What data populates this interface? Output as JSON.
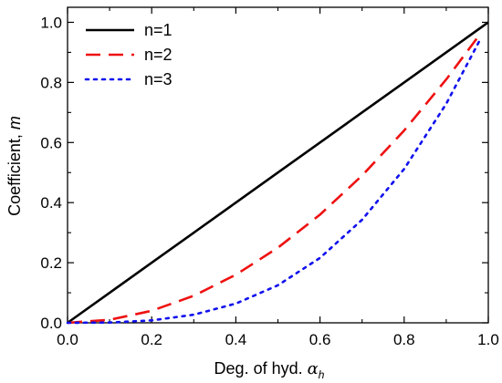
{
  "chart_data": {
    "type": "line",
    "xlabel": "Deg. of hyd. ",
    "xlabel_symbol": "α",
    "xlabel_subscript": "h",
    "ylabel": "Coefficient, ",
    "ylabel_symbol": "m",
    "xlim": [
      0.0,
      1.0
    ],
    "ylim": [
      0.0,
      1.05
    ],
    "xticks": [
      "0.0",
      "0.2",
      "0.4",
      "0.6",
      "0.8",
      "1.0"
    ],
    "yticks": [
      "0.0",
      "0.2",
      "0.4",
      "0.6",
      "0.8",
      "1.0"
    ],
    "grid": false,
    "legend_position": "top-left",
    "series": [
      {
        "name": "n=1",
        "color": "#000000",
        "style": "solid",
        "x": [
          0.0,
          0.1,
          0.2,
          0.3,
          0.4,
          0.5,
          0.6,
          0.7,
          0.8,
          0.9,
          1.0
        ],
        "y": [
          0.0,
          0.1,
          0.2,
          0.3,
          0.4,
          0.5,
          0.6,
          0.7,
          0.8,
          0.9,
          1.0
        ]
      },
      {
        "name": "n=2",
        "color": "#ee1111",
        "style": "dashed",
        "x": [
          0.0,
          0.1,
          0.2,
          0.3,
          0.4,
          0.5,
          0.6,
          0.7,
          0.8,
          0.9,
          0.98
        ],
        "y": [
          0.0,
          0.01,
          0.04,
          0.09,
          0.16,
          0.25,
          0.36,
          0.49,
          0.64,
          0.81,
          0.96
        ]
      },
      {
        "name": "n=3",
        "color": "#1111ee",
        "style": "dotted",
        "x": [
          0.0,
          0.1,
          0.2,
          0.3,
          0.4,
          0.5,
          0.6,
          0.7,
          0.8,
          0.9,
          0.98
        ],
        "y": [
          0.0,
          0.001,
          0.008,
          0.027,
          0.064,
          0.125,
          0.216,
          0.343,
          0.512,
          0.729,
          0.941
        ]
      }
    ]
  }
}
